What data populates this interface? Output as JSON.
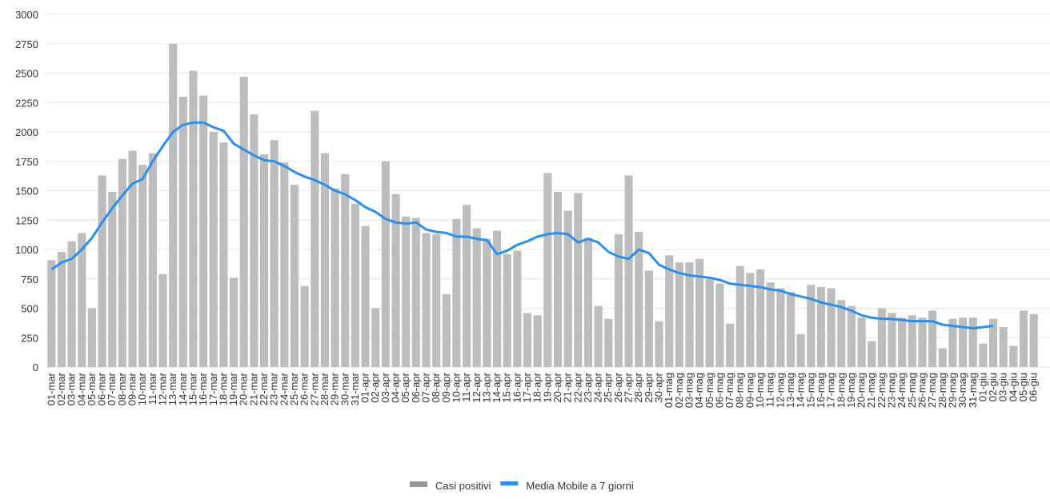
{
  "chart_data": {
    "type": "bar-line",
    "categories": [
      "01-mar",
      "02-mar",
      "03-mar",
      "04-mar",
      "05-mar",
      "06-mar",
      "07-mar",
      "08-mar",
      "09-mar",
      "10-mar",
      "11-mar",
      "12-mar",
      "13-mar",
      "14-mar",
      "15-mar",
      "16-mar",
      "17-mar",
      "18-mar",
      "19-mar",
      "20-mar",
      "21-mar",
      "22-mar",
      "23-mar",
      "24-mar",
      "25-mar",
      "26-mar",
      "27-mar",
      "28-mar",
      "29-mar",
      "30-mar",
      "31-mar",
      "01-apr",
      "02-apr",
      "03-apr",
      "04-apr",
      "05-apr",
      "06-apr",
      "07-apr",
      "08-apr",
      "09-apr",
      "10-apr",
      "11-apr",
      "12-apr",
      "13-apr",
      "14-apr",
      "15-apr",
      "16-apr",
      "17-apr",
      "18-apr",
      "19-apr",
      "20-apr",
      "21-apr",
      "22-apr",
      "23-apr",
      "24-apr",
      "25-apr",
      "26-apr",
      "27-apr",
      "28-apr",
      "29-apr",
      "30-apr",
      "01-mag",
      "02-mag",
      "03-mag",
      "04-mag",
      "05-mag",
      "06-mag",
      "07-mag",
      "08-mag",
      "09-mag",
      "10-mag",
      "11-mag",
      "12-mag",
      "13-mag",
      "14-mag",
      "15-mag",
      "16-mag",
      "17-mag",
      "18-mag",
      "19-mag",
      "20-mag",
      "21-mag",
      "22-mag",
      "23-mag",
      "24-mag",
      "25-mag",
      "26-mag",
      "27-mag",
      "28-mag",
      "29-mag",
      "30-mag",
      "31-mag",
      "01-giu",
      "02-giu",
      "03-giu",
      "04-giu",
      "05-giu",
      "06-giu"
    ],
    "series": [
      {
        "name": "Casi positivi",
        "type": "bar",
        "color": "#bdbdbd",
        "values": [
          910,
          980,
          1070,
          1140,
          500,
          1630,
          1490,
          1770,
          1840,
          1720,
          1820,
          790,
          2750,
          2300,
          2520,
          2310,
          2000,
          1910,
          760,
          2470,
          2150,
          1810,
          1930,
          1740,
          1550,
          690,
          2180,
          1820,
          1520,
          1640,
          1390,
          1200,
          500,
          1750,
          1470,
          1280,
          1270,
          1140,
          1130,
          620,
          1260,
          1380,
          1180,
          1090,
          1160,
          960,
          990,
          460,
          440,
          1650,
          1490,
          1330,
          1480,
          1100,
          520,
          410,
          1130,
          1630,
          1150,
          820,
          390,
          950,
          890,
          890,
          920,
          750,
          710,
          370,
          860,
          800,
          830,
          720,
          670,
          640,
          280,
          700,
          680,
          670,
          570,
          520,
          420,
          220,
          500,
          460,
          420,
          440,
          420,
          480,
          160,
          410,
          420,
          420,
          200,
          410,
          340,
          180,
          480,
          450
        ]
      },
      {
        "name": "Media Mobile a 7 giorni",
        "type": "line",
        "color": "#2b8ff0",
        "values": [
          830,
          890,
          920,
          1000,
          1100,
          1230,
          1350,
          1460,
          1560,
          1600,
          1750,
          1880,
          2000,
          2060,
          2080,
          2080,
          2040,
          2010,
          1900,
          1850,
          1800,
          1760,
          1750,
          1710,
          1660,
          1620,
          1590,
          1550,
          1500,
          1470,
          1420,
          1360,
          1320,
          1260,
          1230,
          1220,
          1230,
          1170,
          1150,
          1140,
          1110,
          1110,
          1090,
          1080,
          960,
          990,
          1040,
          1070,
          1110,
          1130,
          1140,
          1130,
          1060,
          1090,
          1060,
          980,
          940,
          920,
          1000,
          970,
          870,
          830,
          800,
          780,
          770,
          760,
          740,
          710,
          700,
          690,
          680,
          660,
          650,
          620,
          600,
          580,
          550,
          530,
          510,
          480,
          440,
          420,
          410,
          410,
          400,
          390,
          390,
          390,
          360,
          350,
          340,
          330,
          340,
          350,
          null,
          null,
          null,
          null
        ]
      }
    ],
    "ylim": [
      0,
      3000
    ],
    "yticks": [
      0,
      250,
      500,
      750,
      1000,
      1250,
      1500,
      1750,
      2000,
      2250,
      2500,
      2750,
      3000
    ],
    "grid": true,
    "legend": "bottom"
  }
}
